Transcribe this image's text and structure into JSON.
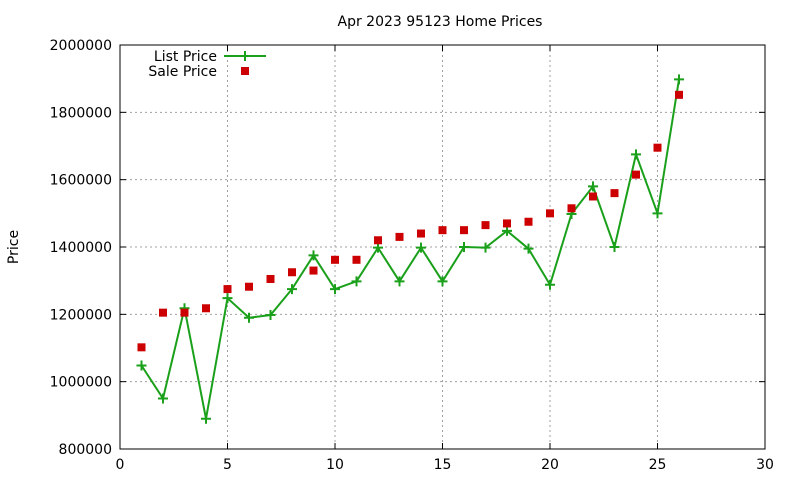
{
  "chart_data": {
    "type": "line",
    "title": "Apr 2023 95123 Home Prices",
    "xlabel": "",
    "ylabel": "Price",
    "xlim": [
      0,
      30
    ],
    "ylim": [
      800000,
      2000000
    ],
    "xticks": [
      0,
      5,
      10,
      15,
      20,
      25,
      30
    ],
    "yticks": [
      800000,
      1000000,
      1200000,
      1400000,
      1600000,
      1800000,
      2000000
    ],
    "grid": true,
    "legend_position": "top-left",
    "series": [
      {
        "name": "List Price",
        "style": "line-points",
        "color": "#1aa01a",
        "x": [
          1,
          2,
          3,
          4,
          5,
          6,
          7,
          8,
          9,
          10,
          11,
          12,
          13,
          14,
          15,
          16,
          17,
          18,
          19,
          20,
          21,
          22,
          23,
          24,
          25,
          26
        ],
        "y": [
          1048000,
          950000,
          1218000,
          890000,
          1248000,
          1190000,
          1198000,
          1275000,
          1375000,
          1275000,
          1298000,
          1398000,
          1298000,
          1398000,
          1298000,
          1400000,
          1398000,
          1448000,
          1395000,
          1288000,
          1498000,
          1580000,
          1400000,
          1675000,
          1500000,
          1898000
        ]
      },
      {
        "name": "Sale Price",
        "style": "points",
        "color": "#cc0000",
        "x": [
          1,
          2,
          3,
          4,
          5,
          6,
          7,
          8,
          9,
          10,
          11,
          12,
          13,
          14,
          15,
          16,
          17,
          18,
          19,
          20,
          21,
          22,
          23,
          24,
          25,
          26
        ],
        "y": [
          1102000,
          1205000,
          1205000,
          1218000,
          1275000,
          1282000,
          1305000,
          1325000,
          1330000,
          1362000,
          1362000,
          1420000,
          1430000,
          1440000,
          1450000,
          1450000,
          1465000,
          1470000,
          1475000,
          1500000,
          1515000,
          1550000,
          1560000,
          1615000,
          1695000,
          1852000
        ]
      }
    ]
  }
}
